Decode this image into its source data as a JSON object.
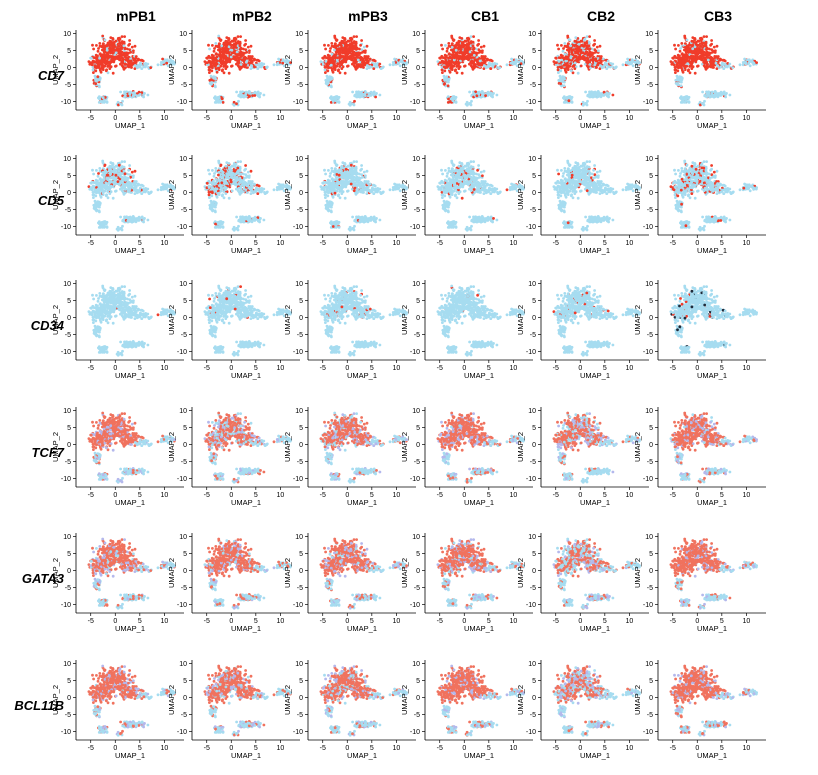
{
  "chart_data": {
    "type": "scatter",
    "description_kind": "UMAP feature plot grid",
    "samples": [
      "mPB1",
      "mPB2",
      "mPB3",
      "CB1",
      "CB2",
      "CB3"
    ],
    "genes": [
      "CD7",
      "CD5",
      "CD34",
      "TCF7",
      "GATA3",
      "BCL11B"
    ],
    "xlabel": "UMAP_1",
    "ylabel": "UMAP_2",
    "xticks": [
      -5,
      0,
      5,
      10
    ],
    "yticks": [
      -10,
      -5,
      0,
      5,
      10
    ],
    "xlim": [
      -8,
      14
    ],
    "ylim": [
      -12.5,
      11
    ],
    "grid": false,
    "colors": {
      "low": "#a6dcf0",
      "mid": "#b4b8ec",
      "high": "#f03c2a",
      "high_soft": "#f0725e",
      "dot_dark": "#1e2a3a"
    },
    "expression_level": [
      [
        0.92,
        0.9,
        0.9,
        0.92,
        0.75,
        0.92
      ],
      [
        0.12,
        0.25,
        0.08,
        0.1,
        0.03,
        0.18
      ],
      [
        0.01,
        0.03,
        0.05,
        0.01,
        0.04,
        0.06
      ],
      [
        0.8,
        0.6,
        0.62,
        0.78,
        0.55,
        0.75
      ],
      [
        0.7,
        0.72,
        0.75,
        0.72,
        0.5,
        0.82
      ],
      [
        0.78,
        0.7,
        0.7,
        0.8,
        0.55,
        0.85
      ]
    ]
  }
}
